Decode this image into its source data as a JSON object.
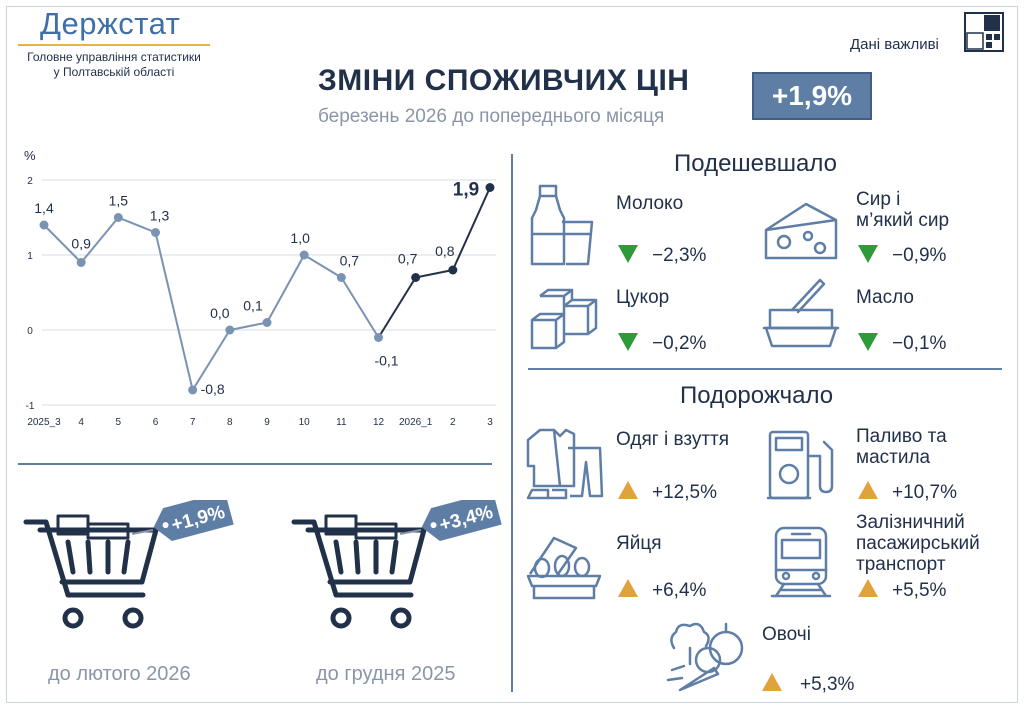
{
  "header": {
    "logo": "Держстат",
    "org_line1": "Головне управління статистики",
    "org_line2": "у Полтавській області",
    "important": "Дані важливі",
    "title": "ЗМІНИ СПОЖИВЧИХ ЦІН",
    "subtitle": "березень 2026 до попереднього місяця",
    "badge": "+1,9%"
  },
  "colors": {
    "accent": "#5e7ea6",
    "line": "#7b93b3",
    "line_recent": "#22314a",
    "down": "#2e9b3a",
    "up": "#e0a23a",
    "logo_underline": "#e6b53f"
  },
  "chart_data": {
    "type": "line",
    "ylabel": "%",
    "ylim": [
      -1,
      2
    ],
    "yticks": [
      "2",
      "1",
      "0",
      "-1"
    ],
    "categories": [
      "2025_3",
      "4",
      "5",
      "6",
      "7",
      "8",
      "9",
      "10",
      "11",
      "12",
      "2026_1",
      "2",
      "3"
    ],
    "values": [
      1.4,
      0.9,
      1.5,
      1.3,
      -0.8,
      0.0,
      0.1,
      1.0,
      0.7,
      -0.1,
      0.7,
      0.8,
      1.9
    ],
    "labels": [
      "1,4",
      "0,9",
      "1,5",
      "1,3",
      "-0,8",
      "0,0",
      "0,1",
      "1,0",
      "0,7",
      "-0,1",
      "0,7",
      "0,8",
      "1,9"
    ],
    "highlight_from_index": 9,
    "grid": true
  },
  "cheaper": {
    "title": "Подешевшало",
    "items": [
      {
        "name": "Молоко",
        "value": "−2,3%",
        "icon": "milk-icon"
      },
      {
        "name": "Сир і\nм’який сир",
        "value": "−0,9%",
        "icon": "cheese-icon"
      },
      {
        "name": "Цукор",
        "value": "−0,2%",
        "icon": "sugar-icon"
      },
      {
        "name": "Масло",
        "value": "−0,1%",
        "icon": "butter-icon"
      }
    ]
  },
  "pricier": {
    "title": "Подорожчало",
    "items": [
      {
        "name": "Одяг і взуття",
        "value": "+12,5%",
        "icon": "clothes-icon"
      },
      {
        "name": "Паливо та\nмастила",
        "value": "+10,7%",
        "icon": "fuel-icon"
      },
      {
        "name": "Яйця",
        "value": "+6,4%",
        "icon": "eggs-icon"
      },
      {
        "name": "Залізничний\nпасажирський\nтранспорт",
        "value": "+5,5%",
        "icon": "train-icon"
      },
      {
        "name": "Овочі",
        "value": "+5,3%",
        "icon": "vegetables-icon"
      }
    ]
  },
  "carts": [
    {
      "tag": "+1,9%",
      "label": "до лютого 2026"
    },
    {
      "tag": "+3,4%",
      "label": "до грудня 2025"
    }
  ]
}
